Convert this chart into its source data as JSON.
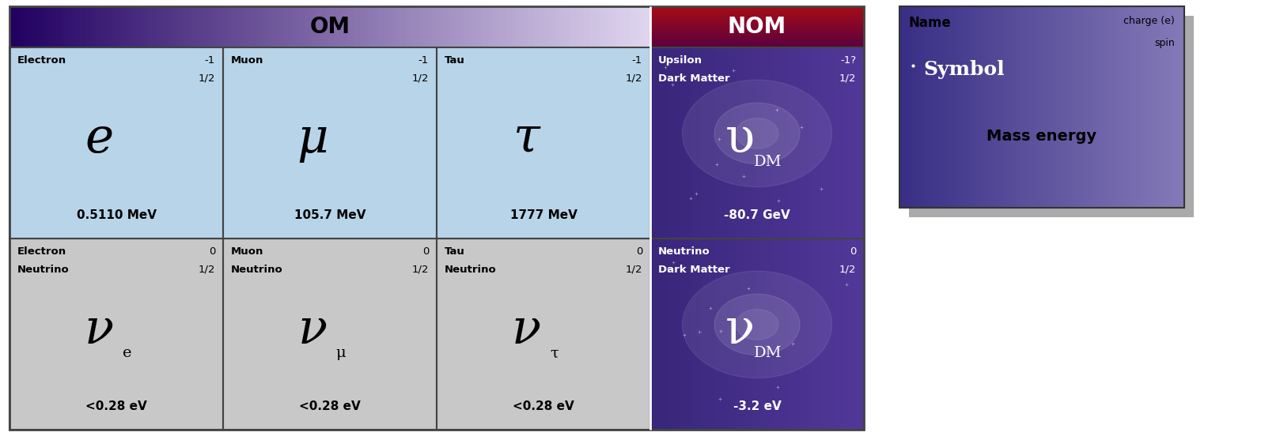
{
  "fig_width": 15.94,
  "fig_height": 5.52,
  "dpi": 100,
  "om_header": "OM",
  "nom_header": "NOM",
  "legend_title": "Name",
  "legend_charge": "charge (e)",
  "legend_spin": "spin",
  "legend_symbol": "Symbol",
  "legend_mass": "Mass energy",
  "cells": [
    {
      "col": 0,
      "row": 0,
      "name1": "Electron",
      "name2": "",
      "charge": "-1",
      "spin": "1/2",
      "symbol": "e",
      "symbol_style": "italic",
      "subscript": "",
      "mass": "0.5110 MeV",
      "bg": "#b8d4e8",
      "text_color": "#000000",
      "mass_color": "#000000"
    },
    {
      "col": 1,
      "row": 0,
      "name1": "Muon",
      "name2": "",
      "charge": "-1",
      "spin": "1/2",
      "symbol": "μ",
      "symbol_style": "italic",
      "subscript": "",
      "mass": "105.7 MeV",
      "bg": "#b8d4e8",
      "text_color": "#000000",
      "mass_color": "#000000"
    },
    {
      "col": 2,
      "row": 0,
      "name1": "Tau",
      "name2": "",
      "charge": "-1",
      "spin": "1/2",
      "symbol": "τ",
      "symbol_style": "italic",
      "subscript": "",
      "mass": "1777 MeV",
      "bg": "#b8d4e8",
      "text_color": "#000000",
      "mass_color": "#000000"
    },
    {
      "col": 3,
      "row": 0,
      "name1": "Upsilon",
      "name2": "Dark Matter",
      "charge": "-1?",
      "spin": "1/2",
      "symbol": "υ",
      "symbol_style": "normal",
      "subscript": "DM",
      "mass": "-80.7 GeV",
      "bg": "nom_upper",
      "text_color": "#ffffff",
      "mass_color": "#ffffff"
    },
    {
      "col": 0,
      "row": 1,
      "name1": "Electron",
      "name2": "Neutrino",
      "charge": "0",
      "spin": "1/2",
      "symbol": "ν",
      "symbol_style": "italic",
      "subscript": "e",
      "mass": "<0.28 eV",
      "bg": "#c8c8c8",
      "text_color": "#000000",
      "mass_color": "#000000"
    },
    {
      "col": 1,
      "row": 1,
      "name1": "Muon",
      "name2": "Neutrino",
      "charge": "0",
      "spin": "1/2",
      "symbol": "ν",
      "symbol_style": "italic",
      "subscript": "μ",
      "mass": "<0.28 eV",
      "bg": "#c8c8c8",
      "text_color": "#000000",
      "mass_color": "#000000"
    },
    {
      "col": 2,
      "row": 1,
      "name1": "Tau",
      "name2": "Neutrino",
      "charge": "0",
      "spin": "1/2",
      "symbol": "ν",
      "symbol_style": "italic",
      "subscript": "τ",
      "mass": "<0.28 eV",
      "bg": "#c8c8c8",
      "text_color": "#000000",
      "mass_color": "#000000"
    },
    {
      "col": 3,
      "row": 1,
      "name1": "Neutrino",
      "name2": "Dark Matter",
      "charge": "0",
      "spin": "1/2",
      "symbol": "ν",
      "symbol_style": "normal",
      "subscript": "DM",
      "mass": "-3.2 eV",
      "bg": "nom_lower",
      "text_color": "#ffffff",
      "mass_color": "#ffffff"
    }
  ]
}
